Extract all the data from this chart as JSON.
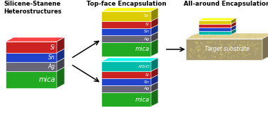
{
  "bg_color": "#ffffff",
  "label1": "Silicene-Stanene\nHeterostructures",
  "label2": "Top-face Encapsulation",
  "label3": "All-around Encapsulation",
  "colors": {
    "red": "#cc2222",
    "blue": "#2244cc",
    "gray": "#666677",
    "green": "#22aa22",
    "teal": "#00bbaa",
    "yellow": "#ddcc00",
    "tan": "#a89c6e"
  },
  "layer_labels": {
    "si": "Si",
    "sn": "Sn",
    "ag": "Ag",
    "mica": "mica",
    "alsio": "AlSiO",
    "target": "Target substrate"
  }
}
